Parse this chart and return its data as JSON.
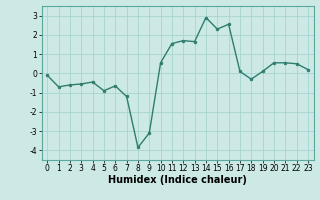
{
  "x": [
    0,
    1,
    2,
    3,
    4,
    5,
    6,
    7,
    8,
    9,
    10,
    11,
    12,
    13,
    14,
    15,
    16,
    17,
    18,
    19,
    20,
    21,
    22,
    23
  ],
  "y": [
    -0.1,
    -0.7,
    -0.6,
    -0.55,
    -0.45,
    -0.9,
    -0.65,
    -1.2,
    -3.85,
    -3.1,
    0.55,
    1.55,
    1.7,
    1.65,
    2.9,
    2.3,
    2.55,
    0.1,
    -0.3,
    0.1,
    0.55,
    0.55,
    0.5,
    0.2
  ],
  "line_color": "#2e7d6e",
  "marker": "o",
  "marker_size": 2.0,
  "bg_color": "#cce9e5",
  "grid_color_major": "#a8d4cf",
  "grid_color_minor": "#bee0db",
  "xlabel": "Humidex (Indice chaleur)",
  "ylim": [
    -4.5,
    3.5
  ],
  "xlim": [
    -0.5,
    23.5
  ],
  "yticks": [
    -4,
    -3,
    -2,
    -1,
    0,
    1,
    2,
    3
  ],
  "xticks": [
    0,
    1,
    2,
    3,
    4,
    5,
    6,
    7,
    8,
    9,
    10,
    11,
    12,
    13,
    14,
    15,
    16,
    17,
    18,
    19,
    20,
    21,
    22,
    23
  ],
  "tick_fontsize": 5.5,
  "xlabel_fontsize": 7.0,
  "spine_color": "#5aa89e",
  "line_width": 1.0
}
